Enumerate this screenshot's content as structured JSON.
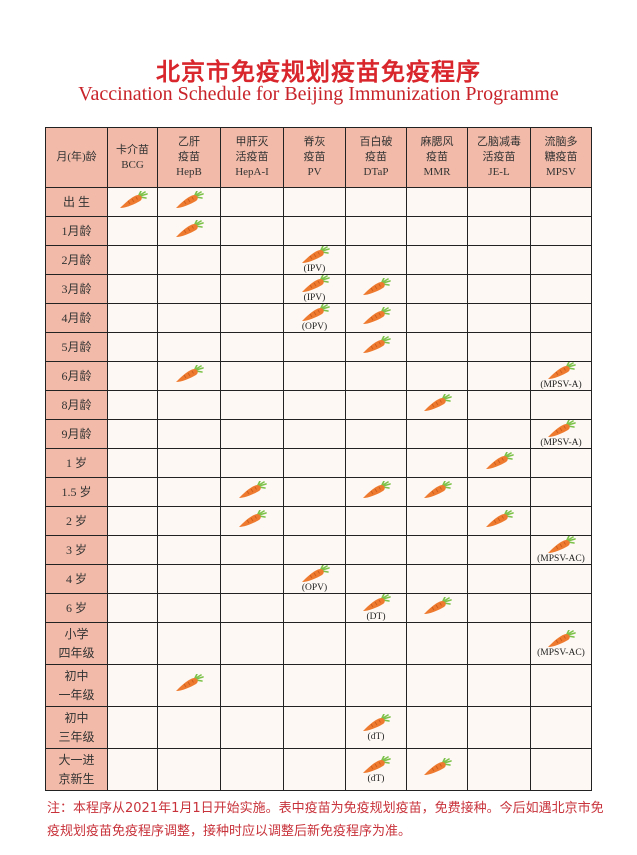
{
  "title_cn": "北京市免疫规划疫苗免疫程序",
  "title_en": "Vaccination Schedule for Beijing Immunization Programme",
  "colors": {
    "title": "#d8262c",
    "header_bg": "#f2bba9",
    "cell_bg": "#fdf8f3",
    "carrot": "#ee7a2f",
    "leaf": "#7cc24a"
  },
  "icon": "carrot-icon",
  "headers": [
    [
      "月(年)龄"
    ],
    [
      "卡介苗",
      "BCG"
    ],
    [
      "乙肝",
      "疫苗",
      "HepB"
    ],
    [
      "甲肝灭",
      "活疫苗",
      "HepA-I"
    ],
    [
      "脊灰",
      "疫苗",
      "PV"
    ],
    [
      "百白破",
      "疫苗",
      "DTaP"
    ],
    [
      "麻腮风",
      "疫苗",
      "MMR"
    ],
    [
      "乙脑减毒",
      "活疫苗",
      "JE-L"
    ],
    [
      "流脑多",
      "糖疫苗",
      "MPSV"
    ]
  ],
  "rows": [
    {
      "label": [
        "出 生"
      ],
      "cells": [
        "",
        "",
        null,
        null,
        null,
        null,
        null,
        null
      ]
    },
    {
      "label": [
        "1月龄"
      ],
      "cells": [
        null,
        "",
        null,
        null,
        null,
        null,
        null,
        null
      ]
    },
    {
      "label": [
        "2月龄"
      ],
      "cells": [
        null,
        null,
        null,
        "(IPV)",
        null,
        null,
        null,
        null
      ]
    },
    {
      "label": [
        "3月龄"
      ],
      "cells": [
        null,
        null,
        null,
        "(IPV)",
        "",
        null,
        null,
        null
      ]
    },
    {
      "label": [
        "4月龄"
      ],
      "cells": [
        null,
        null,
        null,
        "(OPV)",
        "",
        null,
        null,
        null
      ]
    },
    {
      "label": [
        "5月龄"
      ],
      "cells": [
        null,
        null,
        null,
        null,
        "",
        null,
        null,
        null
      ]
    },
    {
      "label": [
        "6月龄"
      ],
      "cells": [
        null,
        "",
        null,
        null,
        null,
        null,
        null,
        "(MPSV-A)"
      ]
    },
    {
      "label": [
        "8月龄"
      ],
      "cells": [
        null,
        null,
        null,
        null,
        null,
        "",
        null,
        null
      ]
    },
    {
      "label": [
        "9月龄"
      ],
      "cells": [
        null,
        null,
        null,
        null,
        null,
        null,
        null,
        "(MPSV-A)"
      ]
    },
    {
      "label": [
        "1 岁"
      ],
      "cells": [
        null,
        null,
        null,
        null,
        null,
        null,
        "",
        null
      ]
    },
    {
      "label": [
        "1.5 岁"
      ],
      "cells": [
        null,
        null,
        "",
        null,
        "",
        "",
        null,
        null
      ]
    },
    {
      "label": [
        "2 岁"
      ],
      "cells": [
        null,
        null,
        "",
        null,
        null,
        null,
        "",
        null
      ]
    },
    {
      "label": [
        "3 岁"
      ],
      "cells": [
        null,
        null,
        null,
        null,
        null,
        null,
        null,
        "(MPSV-AC)"
      ]
    },
    {
      "label": [
        "4 岁"
      ],
      "cells": [
        null,
        null,
        null,
        "(OPV)",
        null,
        null,
        null,
        null
      ]
    },
    {
      "label": [
        "6 岁"
      ],
      "cells": [
        null,
        null,
        null,
        null,
        "(DT)",
        "",
        null,
        null
      ]
    },
    {
      "label": [
        "小学",
        "四年级"
      ],
      "cells": [
        null,
        null,
        null,
        null,
        null,
        null,
        null,
        "(MPSV-AC)"
      ]
    },
    {
      "label": [
        "初中",
        "一年级"
      ],
      "cells": [
        null,
        "",
        null,
        null,
        null,
        null,
        null,
        null
      ]
    },
    {
      "label": [
        "初中",
        "三年级"
      ],
      "cells": [
        null,
        null,
        null,
        null,
        "(dT)",
        null,
        null,
        null
      ]
    },
    {
      "label": [
        "大一进",
        "京新生"
      ],
      "cells": [
        null,
        null,
        null,
        null,
        "(dT)",
        "",
        null,
        null
      ]
    }
  ],
  "note": "注：本程序从2021年1月1日开始实施。表中疫苗为免疫规划疫苗，免费接种。今后如遇北京市免疫规划疫苗免疫程序调整，接种时应以调整后新免疫程序为准。"
}
